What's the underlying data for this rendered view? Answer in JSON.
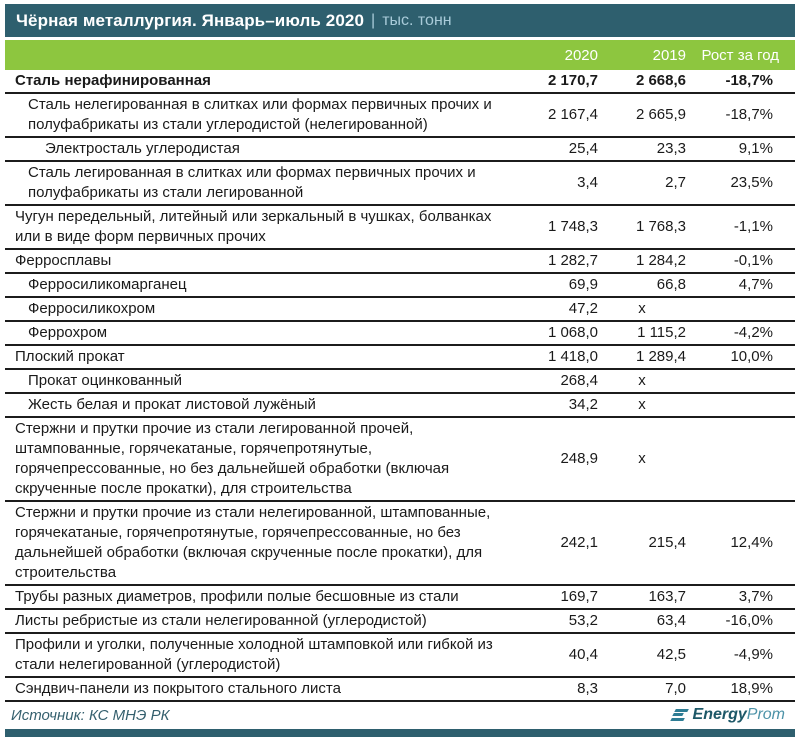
{
  "header": {
    "title": "Чёрная металлургия. Январь–июль 2020",
    "separator": "|",
    "units": "тыс. тонн"
  },
  "chart_data": {
    "type": "table",
    "title": "Чёрная металлургия. Январь–июль 2020",
    "units": "тыс. тонн",
    "columns": [
      "2020",
      "2019",
      "Рост за год"
    ],
    "rows": [
      {
        "name": "Сталь нерафинированная",
        "indent": 0,
        "bold": true,
        "v2020": "2 170,7",
        "v2019": "2 668,6",
        "growth": "-18,7%"
      },
      {
        "name": "Сталь нелегированная в слитках или формах первичных прочих и полуфабрикаты из стали углеродистой (нелегированной)",
        "indent": 1,
        "bold": false,
        "v2020": "2 167,4",
        "v2019": "2 665,9",
        "growth": "-18,7%"
      },
      {
        "name": "Электросталь углеродистая",
        "indent": 2,
        "bold": false,
        "v2020": "25,4",
        "v2019": "23,3",
        "growth": "9,1%"
      },
      {
        "name": "Сталь легированная в слитках или формах первичных прочих и полуфабрикаты из стали легированной",
        "indent": 1,
        "bold": false,
        "v2020": "3,4",
        "v2019": "2,7",
        "growth": "23,5%"
      },
      {
        "name": "Чугун передельный, литейный или зеркальный в чушках, болванках или в виде форм первичных прочих",
        "indent": 0,
        "bold": false,
        "v2020": "1 748,3",
        "v2019": "1 768,3",
        "growth": "-1,1%"
      },
      {
        "name": "Ферросплавы",
        "indent": 0,
        "bold": false,
        "v2020": "1 282,7",
        "v2019": "1 284,2",
        "growth": "-0,1%"
      },
      {
        "name": "Ферросиликомарганец",
        "indent": 1,
        "bold": false,
        "v2020": "69,9",
        "v2019": "66,8",
        "growth": "4,7%"
      },
      {
        "name": "Ферросиликохром",
        "indent": 1,
        "bold": false,
        "v2020": "47,2",
        "v2019": "х",
        "growth": ""
      },
      {
        "name": "Феррохром",
        "indent": 1,
        "bold": false,
        "v2020": "1 068,0",
        "v2019": "1 115,2",
        "growth": "-4,2%"
      },
      {
        "name": "Плоский прокат",
        "indent": 0,
        "bold": false,
        "v2020": "1 418,0",
        "v2019": "1 289,4",
        "growth": "10,0%"
      },
      {
        "name": "Прокат оцинкованный",
        "indent": 1,
        "bold": false,
        "v2020": "268,4",
        "v2019": "х",
        "growth": ""
      },
      {
        "name": "Жесть белая и прокат листовой лужёный",
        "indent": 1,
        "bold": false,
        "v2020": "34,2",
        "v2019": "х",
        "growth": ""
      },
      {
        "name": "Стержни и прутки прочие из стали легированной прочей, штампованные, горячекатаные, горячепротянутые, горячепрессованные, но без дальнейшей обработки (включая скрученные после прокатки), для строительства",
        "indent": 0,
        "bold": false,
        "v2020": "248,9",
        "v2019": "х",
        "growth": ""
      },
      {
        "name": "Стержни и прутки прочие из стали нелегированной, штампованные, горячекатаные, горячепротянутые, горячепрессованные, но без дальнейшей обработки (включая скрученные после прокатки), для строительства",
        "indent": 0,
        "bold": false,
        "v2020": "242,1",
        "v2019": "215,4",
        "growth": "12,4%"
      },
      {
        "name": "Трубы разных диаметров, профили полые бесшовные из стали",
        "indent": 0,
        "bold": false,
        "v2020": "169,7",
        "v2019": "163,7",
        "growth": "3,7%"
      },
      {
        "name": "Листы ребристые из стали нелегированной (углеродистой)",
        "indent": 0,
        "bold": false,
        "v2020": "53,2",
        "v2019": "63,4",
        "growth": "-16,0%"
      },
      {
        "name": "Профили и уголки, полученные холодной штамповкой или гибкой из стали нелегированной (углеродистой)",
        "indent": 0,
        "bold": false,
        "v2020": "40,4",
        "v2019": "42,5",
        "growth": "-4,9%"
      },
      {
        "name": "Сэндвич-панели из покрытого стального листа",
        "indent": 0,
        "bold": false,
        "v2020": "8,3",
        "v2019": "7,0",
        "growth": "18,9%"
      }
    ]
  },
  "footer": {
    "source": "Источник: КС МНЭ РК",
    "logo_bold": "Energy",
    "logo_light": "Prom"
  },
  "colors": {
    "title_bar_bg": "#2e5f6e",
    "header_row_bg": "#8dc63f",
    "units_text": "#a9cbd9",
    "row_border": "#1c1c1c",
    "logo_teal": "#2e7d95"
  }
}
